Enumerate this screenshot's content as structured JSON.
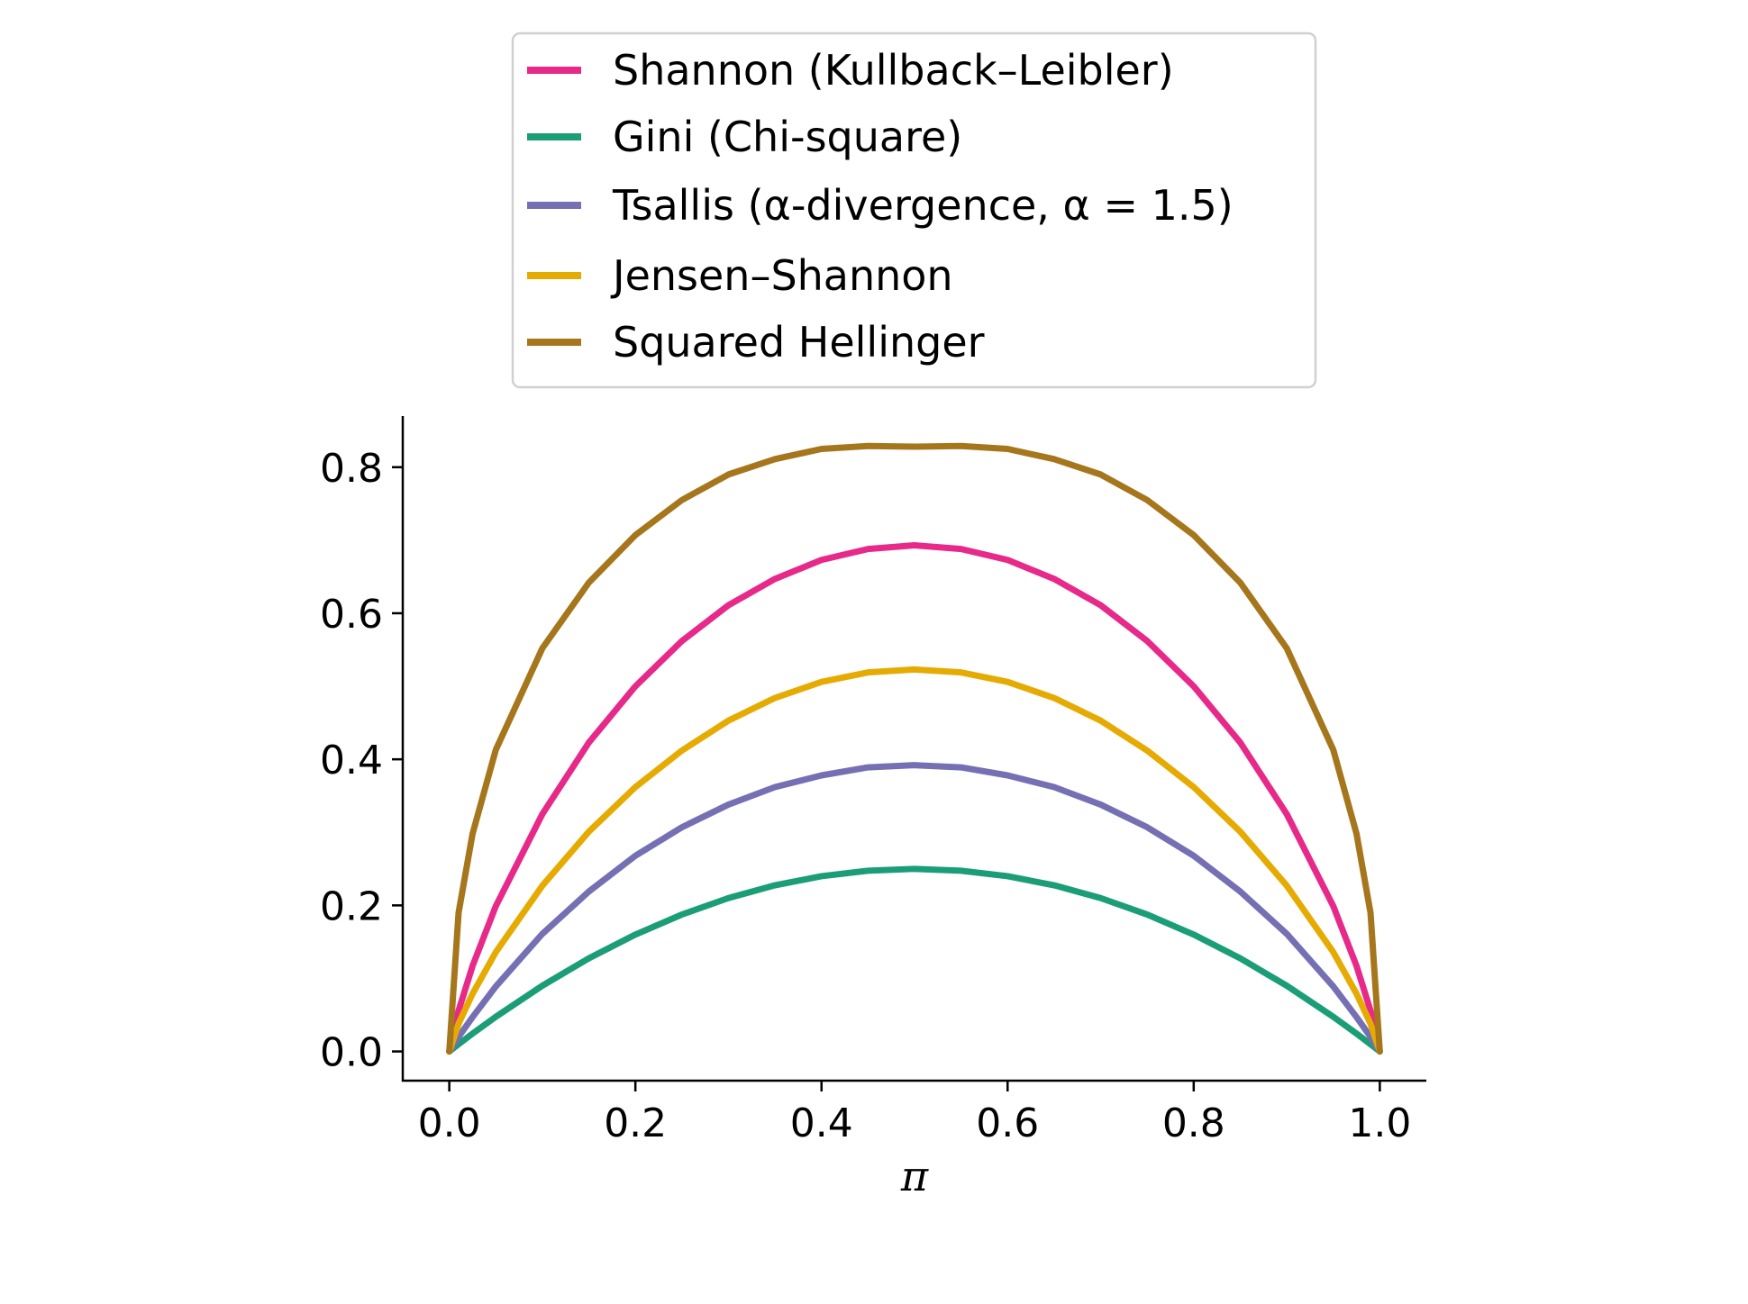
{
  "chart_data": {
    "type": "line",
    "title": "",
    "xlabel": "π",
    "ylabel": "",
    "xlim": [
      -0.05,
      1.05
    ],
    "ylim": [
      -0.04,
      0.87
    ],
    "xticks": [
      "0.0",
      "0.2",
      "0.4",
      "0.6",
      "0.8",
      "1.0"
    ],
    "yticks": [
      "0.0",
      "0.2",
      "0.4",
      "0.6",
      "0.8"
    ],
    "grid": false,
    "legend_position": "top-center",
    "x": [
      0.0,
      0.01,
      0.025,
      0.05,
      0.1,
      0.15,
      0.2,
      0.25,
      0.3,
      0.35,
      0.4,
      0.45,
      0.5,
      0.55,
      0.6,
      0.65,
      0.7,
      0.75,
      0.8,
      0.85,
      0.9,
      0.95,
      0.975,
      0.99,
      1.0
    ],
    "series": [
      {
        "name": "Shannon (Kullback–Leibler)",
        "color": "#e7298a",
        "values": [
          0.0,
          0.056,
          0.117,
          0.199,
          0.325,
          0.423,
          0.5,
          0.562,
          0.611,
          0.647,
          0.673,
          0.688,
          0.693,
          0.688,
          0.673,
          0.647,
          0.611,
          0.562,
          0.5,
          0.423,
          0.325,
          0.199,
          0.117,
          0.056,
          0.0
        ]
      },
      {
        "name": "Gini (Chi-square)",
        "color": "#1b9e77",
        "values": [
          0.0,
          0.0099,
          0.0244,
          0.0475,
          0.09,
          0.1275,
          0.16,
          0.1875,
          0.21,
          0.2275,
          0.24,
          0.2475,
          0.25,
          0.2475,
          0.24,
          0.2275,
          0.21,
          0.1875,
          0.16,
          0.1275,
          0.09,
          0.0475,
          0.0244,
          0.0099,
          0.0
        ]
      },
      {
        "name": "Tsallis (α-divergence, α = 1.5)",
        "color": "#7570b3",
        "values": [
          0.0,
          0.02,
          0.047,
          0.089,
          0.161,
          0.219,
          0.268,
          0.307,
          0.338,
          0.362,
          0.378,
          0.389,
          0.392,
          0.389,
          0.378,
          0.362,
          0.338,
          0.307,
          0.268,
          0.219,
          0.161,
          0.089,
          0.047,
          0.02,
          0.0
        ]
      },
      {
        "name": "Jensen–Shannon",
        "color": "#e6ab02",
        "values": [
          0.0,
          0.038,
          0.079,
          0.136,
          0.227,
          0.301,
          0.362,
          0.412,
          0.453,
          0.484,
          0.506,
          0.519,
          0.523,
          0.519,
          0.506,
          0.484,
          0.453,
          0.412,
          0.362,
          0.301,
          0.227,
          0.136,
          0.079,
          0.038,
          0.0
        ]
      },
      {
        "name": "Squared Hellinger",
        "color": "#a6761d",
        "values": [
          0.0,
          0.19,
          0.298,
          0.413,
          0.552,
          0.642,
          0.707,
          0.755,
          0.79,
          0.811,
          0.825,
          0.829,
          0.828,
          0.829,
          0.825,
          0.811,
          0.79,
          0.755,
          0.707,
          0.642,
          0.552,
          0.413,
          0.298,
          0.19,
          0.0
        ]
      }
    ]
  }
}
